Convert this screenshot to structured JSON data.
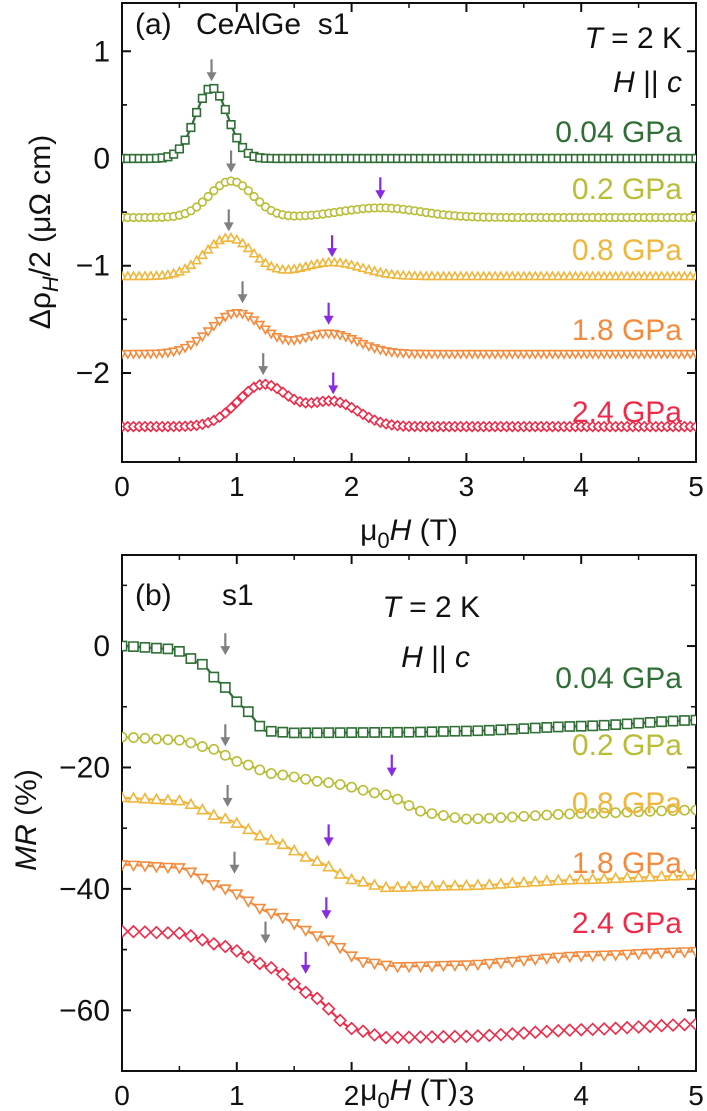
{
  "chart_data": [
    {
      "type": "line",
      "panel": "(a)",
      "title": "CeAlGe  s1",
      "xlabel_sym": "μ",
      "xlabel_sub": "0",
      "xlabel_var": "H",
      "xlabel_unit": " (T)",
      "ylabel_pre": "Δρ",
      "ylabel_sub": "H",
      "ylabel_post": "/2 (μΩ cm)",
      "xlim": [
        0,
        5
      ],
      "ylim": [
        -2.83,
        1.45
      ],
      "xticks": [
        0,
        1,
        2,
        3,
        4,
        5
      ],
      "xtick_labels": [
        "0",
        "1",
        "2",
        "3",
        "4",
        "5"
      ],
      "yticks": [
        1,
        0,
        -1,
        -2
      ],
      "ytick_labels": [
        "1",
        "0",
        "−1",
        "−2"
      ],
      "annotation_T": {
        "var": "T",
        "rest": " = 2 K"
      },
      "annotation_H": {
        "var": "H",
        "mid": " || ",
        "var2": "c"
      },
      "series": [
        {
          "name": "0.04 GPa",
          "color": "#2f6e35",
          "marker": "square",
          "baseline": 0.0,
          "peaks": [
            {
              "x": 0.78,
              "h": 0.66,
              "w": 0.14
            }
          ],
          "arrows": [
            {
              "x": 0.78,
              "y": 0.72,
              "color": "#808080"
            }
          ]
        },
        {
          "name": "0.2 GPa",
          "color": "#b8bd35",
          "marker": "circle",
          "baseline": -0.55,
          "peaks": [
            {
              "x": 0.95,
              "h": 0.34,
              "w": 0.19
            },
            {
              "x": 2.25,
              "h": 0.09,
              "w": 0.35
            }
          ],
          "arrows": [
            {
              "x": 0.95,
              "y": -0.13,
              "color": "#808080"
            },
            {
              "x": 2.25,
              "y": -0.38,
              "color": "#8a2be2"
            }
          ]
        },
        {
          "name": "0.8 GPa",
          "color": "#f1b53b",
          "marker": "triangle-up",
          "baseline": -1.1,
          "peaks": [
            {
              "x": 0.93,
              "h": 0.36,
              "w": 0.21
            },
            {
              "x": 1.83,
              "h": 0.13,
              "w": 0.26
            }
          ],
          "arrows": [
            {
              "x": 0.93,
              "y": -0.68,
              "color": "#808080"
            },
            {
              "x": 1.83,
              "y": -0.92,
              "color": "#8a2be2"
            }
          ]
        },
        {
          "name": "1.8 GPa",
          "color": "#f58a3c",
          "marker": "triangle-down",
          "baseline": -1.82,
          "peaks": [
            {
              "x": 1.0,
              "h": 0.38,
              "w": 0.23
            },
            {
              "x": 1.8,
              "h": 0.19,
              "w": 0.25
            }
          ],
          "arrows": [
            {
              "x": 1.05,
              "y": -1.35,
              "color": "#808080"
            },
            {
              "x": 1.8,
              "y": -1.55,
              "color": "#8a2be2"
            }
          ]
        },
        {
          "name": "2.4 GPa",
          "color": "#ee2a48",
          "marker": "diamond",
          "baseline": -2.5,
          "peaks": [
            {
              "x": 1.23,
              "h": 0.39,
              "w": 0.22
            },
            {
              "x": 1.84,
              "h": 0.23,
              "w": 0.22
            }
          ],
          "arrows": [
            {
              "x": 1.23,
              "y": -2.02,
              "color": "#808080"
            },
            {
              "x": 1.84,
              "y": -2.2,
              "color": "#8a2be2"
            }
          ]
        }
      ]
    },
    {
      "type": "line",
      "panel": "(b)",
      "title": "s1",
      "xlabel_sym": "μ",
      "xlabel_sub": "0",
      "xlabel_var": "H",
      "xlabel_unit": " (T)",
      "ylabel_var": "MR",
      "ylabel_post": " (%)",
      "xlim": [
        0,
        5
      ],
      "ylim": [
        -70,
        15
      ],
      "xticks": [
        0,
        1,
        2,
        3,
        4,
        5
      ],
      "xtick_labels": [
        "0",
        "1",
        "2",
        "3",
        "4",
        "5"
      ],
      "yticks": [
        0,
        -20,
        -40,
        -60
      ],
      "ytick_labels": [
        "0",
        "−20",
        "−40",
        "−60"
      ],
      "annotation_T": {
        "var": "T",
        "rest": " = 2 K"
      },
      "annotation_H": {
        "var": "H",
        "mid": " || ",
        "var2": "c"
      },
      "series": [
        {
          "name": "0.04 GPa",
          "color": "#2f6e35",
          "marker": "square",
          "points": [
            [
              0,
              0
            ],
            [
              0.45,
              -0.5
            ],
            [
              0.7,
              -3
            ],
            [
              0.85,
              -6
            ],
            [
              1.05,
              -10
            ],
            [
              1.25,
              -14
            ],
            [
              1.5,
              -14.3
            ],
            [
              2.5,
              -14.2
            ],
            [
              3.0,
              -14
            ],
            [
              4.0,
              -13.2
            ],
            [
              5.0,
              -12.2
            ]
          ],
          "arrows": [
            {
              "x": 0.9,
              "y": -1.5,
              "color": "#808080"
            }
          ]
        },
        {
          "name": "0.2 GPa",
          "color": "#b8bd35",
          "marker": "circle",
          "points": [
            [
              0,
              -15
            ],
            [
              0.5,
              -15.5
            ],
            [
              0.8,
              -17
            ],
            [
              1.0,
              -19
            ],
            [
              1.3,
              -21
            ],
            [
              1.8,
              -22.5
            ],
            [
              2.3,
              -24.5
            ],
            [
              2.65,
              -27.5
            ],
            [
              3.0,
              -28.5
            ],
            [
              4.0,
              -27.6
            ],
            [
              5.0,
              -27
            ]
          ],
          "arrows": [
            {
              "x": 0.9,
              "y": -16.5,
              "color": "#808080"
            },
            {
              "x": 2.35,
              "y": -21.5,
              "color": "#8a2be2"
            }
          ]
        },
        {
          "name": "0.8 GPa",
          "color": "#f1b53b",
          "marker": "triangle-up",
          "points": [
            [
              0,
              -25
            ],
            [
              0.5,
              -25.5
            ],
            [
              0.9,
              -28.5
            ],
            [
              1.3,
              -32
            ],
            [
              1.7,
              -35.5
            ],
            [
              2.0,
              -38.5
            ],
            [
              2.3,
              -39.8
            ],
            [
              3.0,
              -39.5
            ],
            [
              4.0,
              -38.5
            ],
            [
              5.0,
              -37.8
            ]
          ],
          "arrows": [
            {
              "x": 0.92,
              "y": -26.5,
              "color": "#808080"
            },
            {
              "x": 1.8,
              "y": -33,
              "color": "#8a2be2"
            }
          ]
        },
        {
          "name": "1.8 GPa",
          "color": "#f58a3c",
          "marker": "triangle-down",
          "points": [
            [
              0,
              -36
            ],
            [
              0.5,
              -36.5
            ],
            [
              0.9,
              -40
            ],
            [
              1.3,
              -44
            ],
            [
              1.75,
              -48
            ],
            [
              2.1,
              -52
            ],
            [
              2.4,
              -52.8
            ],
            [
              3.0,
              -52.5
            ],
            [
              4.0,
              -51
            ],
            [
              5.0,
              -50.3
            ]
          ],
          "arrows": [
            {
              "x": 0.98,
              "y": -37.5,
              "color": "#808080"
            },
            {
              "x": 1.78,
              "y": -45,
              "color": "#8a2be2"
            }
          ]
        },
        {
          "name": "2.4 GPa",
          "color": "#ee2a48",
          "marker": "diamond",
          "points": [
            [
              0,
              -47
            ],
            [
              0.5,
              -47.3
            ],
            [
              0.9,
              -49.5
            ],
            [
              1.3,
              -53
            ],
            [
              1.65,
              -57.5
            ],
            [
              2.0,
              -63
            ],
            [
              2.3,
              -64.5
            ],
            [
              3.0,
              -64.3
            ],
            [
              4.0,
              -63.2
            ],
            [
              5.0,
              -62.3
            ]
          ],
          "arrows": [
            {
              "x": 1.25,
              "y": -49,
              "color": "#808080"
            },
            {
              "x": 1.6,
              "y": -54,
              "color": "#8a2be2"
            }
          ]
        }
      ]
    }
  ]
}
